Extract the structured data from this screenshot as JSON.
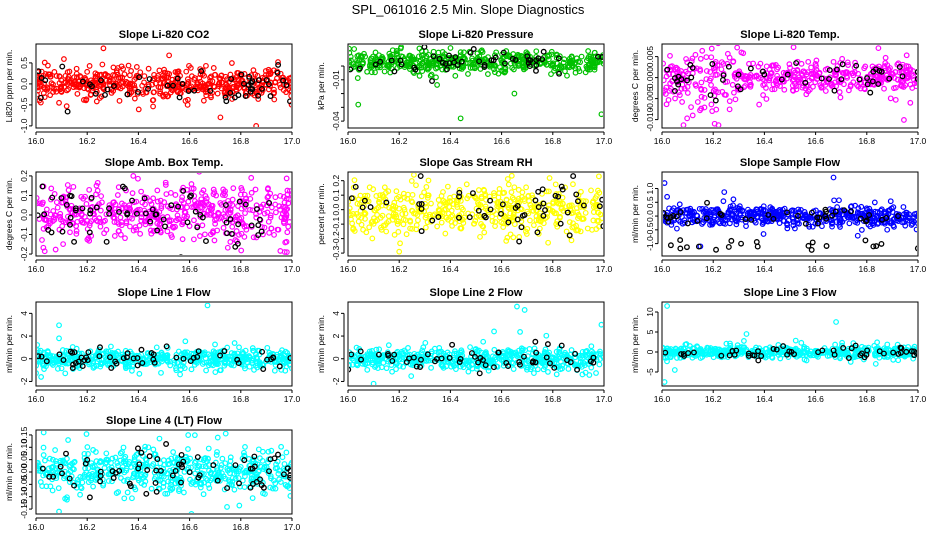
{
  "figure_title": "SPL_061016  2.5 Min. Slope Diagnostics",
  "chart_data": [
    {
      "type": "scatter",
      "title": "Slope Li-820 CO2",
      "ylabel": "Li820 ppm per min.",
      "color": "#ff0000",
      "xlim": [
        16.0,
        17.0
      ],
      "ylim": [
        -1.05,
        0.95
      ],
      "xticks": [
        "16.0",
        "16.2",
        "16.4",
        "16.6",
        "16.8",
        "17.0"
      ],
      "yticks": [
        -1,
        -0.5,
        0,
        0.5
      ],
      "ytick_labels": [
        "-1.0",
        "-0.5",
        "0.0",
        "0.5"
      ],
      "spread": 0.18,
      "n_points": 520,
      "n_black": 55,
      "outliers": [
        [
          16.52,
          0.68
        ],
        [
          16.86,
          -1.0
        ],
        [
          16.09,
          -0.45
        ]
      ]
    },
    {
      "type": "scatter",
      "title": "Slope Li-820 Pressure",
      "ylabel": "kPa per min.",
      "color": "#00c000",
      "xlim": [
        16.0,
        17.0
      ],
      "ylim": [
        -0.045,
        0.016
      ],
      "xticks": [
        "16.0",
        "16.2",
        "16.4",
        "16.6",
        "16.8",
        "17.0"
      ],
      "yticks": [
        -0.04,
        -0.03,
        -0.02,
        -0.01,
        0
      ],
      "ytick_labels": [
        "-0.04",
        "",
        "",
        "-0.01",
        ""
      ],
      "spread": 0.004,
      "center": 0.003,
      "n_points": 480,
      "n_black": 50,
      "outliers": [
        [
          16.44,
          -0.038
        ],
        [
          16.99,
          -0.035
        ],
        [
          16.65,
          -0.02
        ],
        [
          16.04,
          -0.028
        ]
      ]
    },
    {
      "type": "scatter",
      "title": "Slope Li-820 Temp.",
      "ylabel": "degrees C per min.",
      "color": "#ff00ff",
      "xlim": [
        16.0,
        17.0
      ],
      "ylim": [
        -0.012,
        0.008
      ],
      "xticks": [
        "16.0",
        "16.2",
        "16.4",
        "16.6",
        "16.8",
        "17.0"
      ],
      "yticks": [
        -0.01,
        -0.005,
        0,
        0.005
      ],
      "ytick_labels": [
        "-0.010",
        "-0.005",
        "0.000",
        "0.005"
      ],
      "spread": 0.0018,
      "center": 0.0002,
      "n_points": 470,
      "n_black": 50,
      "early_spread": 0.004,
      "outliers": [
        [
          16.12,
          -0.009
        ],
        [
          16.31,
          0.006
        ],
        [
          16.97,
          -0.006
        ]
      ]
    },
    {
      "type": "scatter",
      "title": "Slope Amb. Box Temp.",
      "ylabel": "degrees C per min.",
      "color": "#ff00ff",
      "xlim": [
        16.0,
        17.0
      ],
      "ylim": [
        -0.21,
        0.22
      ],
      "xticks": [
        "16.0",
        "16.2",
        "16.4",
        "16.6",
        "16.8",
        "17.0"
      ],
      "yticks": [
        -0.2,
        -0.1,
        0,
        0.1,
        0.2
      ],
      "ytick_labels": [
        "-0.2",
        "-0.1",
        "0.0",
        "0.1",
        "0.2"
      ],
      "spread": 0.07,
      "n_points": 500,
      "n_black": 70,
      "outliers": [
        [
          16.38,
          0.2
        ],
        [
          16.98,
          -0.19
        ]
      ]
    },
    {
      "type": "scatter",
      "title": "Slope Gas Stream RH",
      "ylabel": "percent per min.",
      "color": "#ffff00",
      "xlim": [
        16.0,
        17.0
      ],
      "ylim": [
        -0.32,
        0.26
      ],
      "xticks": [
        "16.0",
        "16.2",
        "16.4",
        "16.6",
        "16.8",
        "17.0"
      ],
      "yticks": [
        -0.3,
        -0.2,
        -0.1,
        0,
        0.1,
        0.2
      ],
      "ytick_labels": [
        "-0.3",
        "-0.2",
        "-0.1",
        "0.0",
        "0.1",
        "0.2"
      ],
      "spread": 0.09,
      "n_points": 480,
      "n_black": 55,
      "outliers": [
        [
          16.98,
          0.23
        ],
        [
          16.2,
          -0.29
        ]
      ]
    },
    {
      "type": "scatter",
      "title": "Slope Sample Flow",
      "ylabel": "ml/min per min.",
      "color": "#0000ff",
      "xlim": [
        16.0,
        17.0
      ],
      "ylim": [
        -1.45,
        1.6
      ],
      "xticks": [
        "16.0",
        "16.2",
        "16.4",
        "16.6",
        "16.8",
        "17.0"
      ],
      "yticks": [
        -1,
        -0.5,
        0,
        0.5,
        1
      ],
      "ytick_labels": [
        "-1.0",
        "-0.5",
        "0.0",
        "0.5",
        "1.0"
      ],
      "spread": 0.18,
      "n_points": 480,
      "n_black": 60,
      "black_low": true,
      "outliers": [
        [
          16.01,
          1.2
        ],
        [
          16.67,
          1.4
        ],
        [
          16.02,
          0.7
        ],
        [
          16.15,
          -1.1
        ]
      ]
    },
    {
      "type": "scatter",
      "title": "Slope Line 1 Flow",
      "ylabel": "ml/min per min.",
      "color": "#00ffff",
      "xlim": [
        16.0,
        17.0
      ],
      "ylim": [
        -2.4,
        5.0
      ],
      "xticks": [
        "16.0",
        "16.2",
        "16.4",
        "16.6",
        "16.8",
        "17.0"
      ],
      "yticks": [
        -2,
        0,
        2,
        4
      ],
      "ytick_labels": [
        "-2",
        "0",
        "2",
        "4"
      ],
      "spread": 0.45,
      "n_points": 500,
      "n_black": 55,
      "outliers": [
        [
          16.67,
          4.7
        ],
        [
          16.02,
          -1.6
        ],
        [
          16.09,
          1.8
        ]
      ]
    },
    {
      "type": "scatter",
      "title": "Slope Line 2 Flow",
      "ylabel": "ml/min per min.",
      "color": "#00ffff",
      "xlim": [
        16.0,
        17.0
      ],
      "ylim": [
        -2.4,
        5.0
      ],
      "xticks": [
        "16.0",
        "16.2",
        "16.4",
        "16.6",
        "16.8",
        "17.0"
      ],
      "yticks": [
        -2,
        0,
        2,
        4
      ],
      "ytick_labels": [
        "-2",
        "0",
        "2",
        "4"
      ],
      "spread": 0.5,
      "n_points": 500,
      "n_black": 55,
      "outliers": [
        [
          16.66,
          4.6
        ],
        [
          16.69,
          4.3
        ],
        [
          16.99,
          3.0
        ],
        [
          16.1,
          -2.2
        ]
      ]
    },
    {
      "type": "scatter",
      "title": "Slope Line 3 Flow",
      "ylabel": "ml/min per min.",
      "color": "#00ffff",
      "xlim": [
        16.0,
        17.0
      ],
      "ylim": [
        -8.5,
        12.5
      ],
      "xticks": [
        "16.0",
        "16.2",
        "16.4",
        "16.6",
        "16.8",
        "17.0"
      ],
      "yticks": [
        -5,
        0,
        5,
        10
      ],
      "ytick_labels": [
        "-5",
        "0",
        "5",
        "10"
      ],
      "spread": 0.8,
      "n_points": 480,
      "n_black": 50,
      "outliers": [
        [
          16.02,
          11.5
        ],
        [
          16.01,
          -7.5
        ],
        [
          16.33,
          4.5
        ],
        [
          16.68,
          7.5
        ],
        [
          16.05,
          -4.5
        ]
      ]
    },
    {
      "type": "scatter",
      "title": "Slope Line 4 (LT) Flow",
      "ylabel": "ml/min per min.",
      "color": "#00ffff",
      "xlim": [
        16.0,
        17.0
      ],
      "ylim": [
        -0.17,
        0.17
      ],
      "xticks": [
        "16.0",
        "16.2",
        "16.4",
        "16.6",
        "16.8",
        "17.0"
      ],
      "yticks": [
        -0.15,
        -0.1,
        -0.05,
        0,
        0.05,
        0.1,
        0.15
      ],
      "ytick_labels": [
        "-0.15",
        "-0.10",
        "-0.05",
        "0.00",
        "0.05",
        "0.10",
        "0.15"
      ],
      "spread": 0.045,
      "n_points": 520,
      "n_black": 70,
      "outliers": [
        [
          16.03,
          0.16
        ],
        [
          16.09,
          -0.16
        ]
      ]
    }
  ]
}
